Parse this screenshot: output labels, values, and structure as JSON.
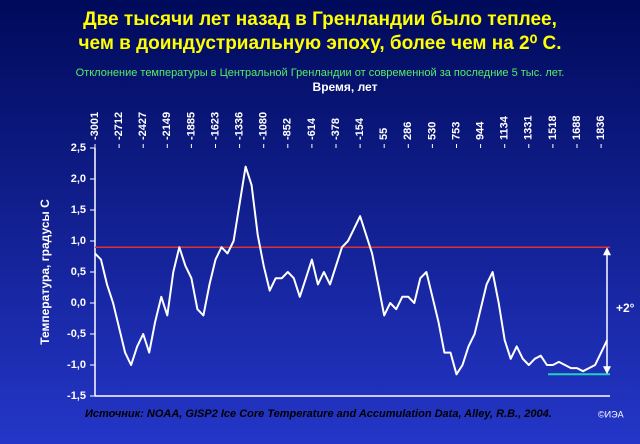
{
  "chart_data": {
    "type": "line",
    "title": [
      "Две тысячи лет назад в Гренландии было теплее,",
      "чем в доиндустриальную эпоху, более чем на 2⁰ С."
    ],
    "subtitle": "Отклонение температуры в Центральной Гренландии от современной за последние 5 тыс. лет.",
    "x_label": "Время, лет",
    "y_label": "Температура, градусы С",
    "source": "Источник: NOAA, GISP2 Ice Core Temperature and Accumulation Data, Alley, R.B., 2004.",
    "credit": "©ИЭА",
    "annotation": "+2°",
    "xlim": [
      0,
      21.37
    ],
    "xticks": [
      {
        "value": 0,
        "label": "-3001"
      },
      {
        "value": 1,
        "label": "-2712"
      },
      {
        "value": 2,
        "label": "-2427"
      },
      {
        "value": 3,
        "label": "-2149"
      },
      {
        "value": 4,
        "label": "-1885"
      },
      {
        "value": 5,
        "label": "-1623"
      },
      {
        "value": 6,
        "label": "-1336"
      },
      {
        "value": 7,
        "label": "-1080"
      },
      {
        "value": 8,
        "label": "-852"
      },
      {
        "value": 9,
        "label": "-614"
      },
      {
        "value": 10,
        "label": "-378"
      },
      {
        "value": 11,
        "label": "-154"
      },
      {
        "value": 12,
        "label": "55"
      },
      {
        "value": 13,
        "label": "286"
      },
      {
        "value": 14,
        "label": "530"
      },
      {
        "value": 15,
        "label": "753"
      },
      {
        "value": 16,
        "label": "944"
      },
      {
        "value": 17,
        "label": "1134"
      },
      {
        "value": 18,
        "label": "1331"
      },
      {
        "value": 19,
        "label": "1518"
      },
      {
        "value": 20,
        "label": "1688"
      },
      {
        "value": 21,
        "label": "1836"
      }
    ],
    "ylim": [
      -1.5,
      2.5
    ],
    "yticks": [
      {
        "value": -1.5,
        "label": "-1,5"
      },
      {
        "value": -1,
        "label": "-1,0"
      },
      {
        "value": -0.5,
        "label": "-0,5"
      },
      {
        "value": 0,
        "label": "0,0"
      },
      {
        "value": 0.5,
        "label": "0,5"
      },
      {
        "value": 1,
        "label": "1,0"
      },
      {
        "value": 1.5,
        "label": "1,5"
      },
      {
        "value": 2,
        "label": "2,0"
      },
      {
        "value": 2.5,
        "label": "2,5"
      }
    ],
    "series": [
      {
        "color": "#ffffff",
        "x": [
          0,
          0.25,
          0.5,
          0.75,
          1,
          1.25,
          1.5,
          1.75,
          2,
          2.25,
          2.5,
          2.75,
          3,
          3.25,
          3.5,
          3.75,
          4,
          4.25,
          4.5,
          4.75,
          5,
          5.25,
          5.5,
          5.75,
          6,
          6.25,
          6.5,
          6.75,
          7,
          7.25,
          7.5,
          7.75,
          8,
          8.25,
          8.5,
          8.75,
          9,
          9.25,
          9.5,
          9.75,
          10,
          10.25,
          10.5,
          10.75,
          11,
          11.25,
          11.5,
          11.75,
          12,
          12.25,
          12.5,
          12.75,
          13,
          13.25,
          13.5,
          13.75,
          14,
          14.25,
          14.5,
          14.75,
          15,
          15.25,
          15.5,
          15.75,
          16,
          16.25,
          16.5,
          16.75,
          17,
          17.25,
          17.5,
          17.75,
          18,
          18.25,
          18.5,
          18.75,
          19,
          19.25,
          19.5,
          19.75,
          20,
          20.25,
          20.5,
          20.75,
          21,
          21.25
        ],
        "values": [
          0.8,
          0.7,
          0.3,
          0.0,
          -0.4,
          -0.8,
          -1.0,
          -0.7,
          -0.5,
          -0.8,
          -0.3,
          0.1,
          -0.2,
          0.5,
          0.9,
          0.6,
          0.4,
          -0.1,
          -0.2,
          0.3,
          0.7,
          0.9,
          0.8,
          1.0,
          1.6,
          2.2,
          1.9,
          1.1,
          0.6,
          0.2,
          0.4,
          0.4,
          0.5,
          0.4,
          0.1,
          0.4,
          0.7,
          0.3,
          0.5,
          0.3,
          0.6,
          0.9,
          1.0,
          1.2,
          1.4,
          1.1,
          0.8,
          0.3,
          -0.2,
          0.0,
          -0.1,
          0.1,
          0.1,
          0.0,
          0.4,
          0.5,
          0.1,
          -0.3,
          -0.8,
          -0.8,
          -1.15,
          -1.0,
          -0.7,
          -0.5,
          -0.1,
          0.3,
          0.5,
          0.0,
          -0.6,
          -0.9,
          -0.7,
          -0.9,
          -1.0,
          -0.9,
          -0.85,
          -1.0,
          -1.0,
          -0.95,
          -1.0,
          -1.05,
          -1.05,
          -1.1,
          -1.05,
          -1.0,
          -0.8,
          -0.6
        ]
      }
    ],
    "reference_line": {
      "value": 0.9,
      "color": "#e03030"
    },
    "modern_line": {
      "value": -1.15,
      "x_start": 18.8,
      "color": "#20d0c0"
    }
  }
}
